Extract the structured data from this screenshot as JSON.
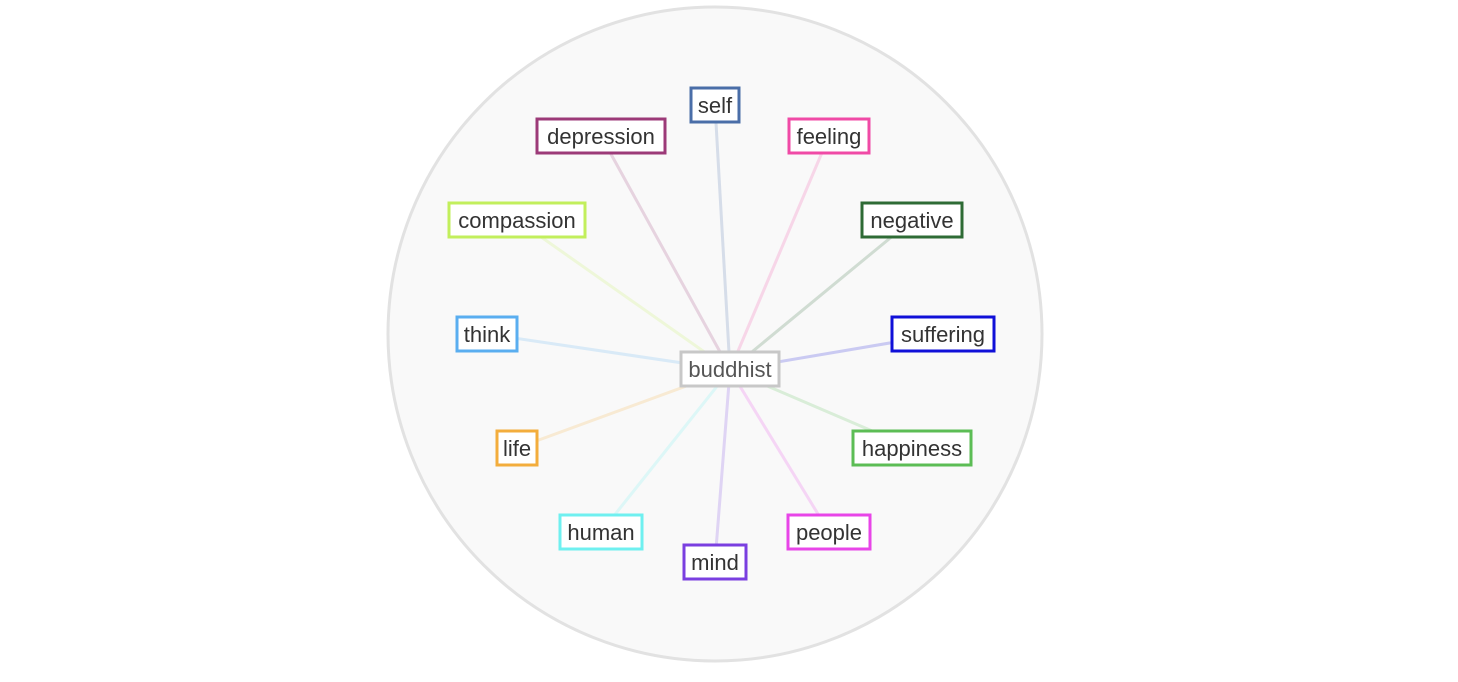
{
  "diagram": {
    "type": "radial-word-network",
    "center": {
      "label": "buddhist",
      "color": "#c8c8c8"
    },
    "nodes": [
      {
        "label": "self",
        "color": "#4a6ea8"
      },
      {
        "label": "feeling",
        "color": "#f04aa6"
      },
      {
        "label": "negative",
        "color": "#2e6b35"
      },
      {
        "label": "suffering",
        "color": "#1010d8"
      },
      {
        "label": "happiness",
        "color": "#5cbd55"
      },
      {
        "label": "people",
        "color": "#e845e8"
      },
      {
        "label": "mind",
        "color": "#7a3fe0"
      },
      {
        "label": "human",
        "color": "#6ff0f0"
      },
      {
        "label": "life",
        "color": "#f3ad3c"
      },
      {
        "label": "think",
        "color": "#5aaef0"
      },
      {
        "label": "compassion",
        "color": "#c2ef5c"
      },
      {
        "label": "depression",
        "color": "#9c3a78"
      }
    ],
    "background_color": "#f9f9f9",
    "border_color": "#e2e2e2"
  }
}
